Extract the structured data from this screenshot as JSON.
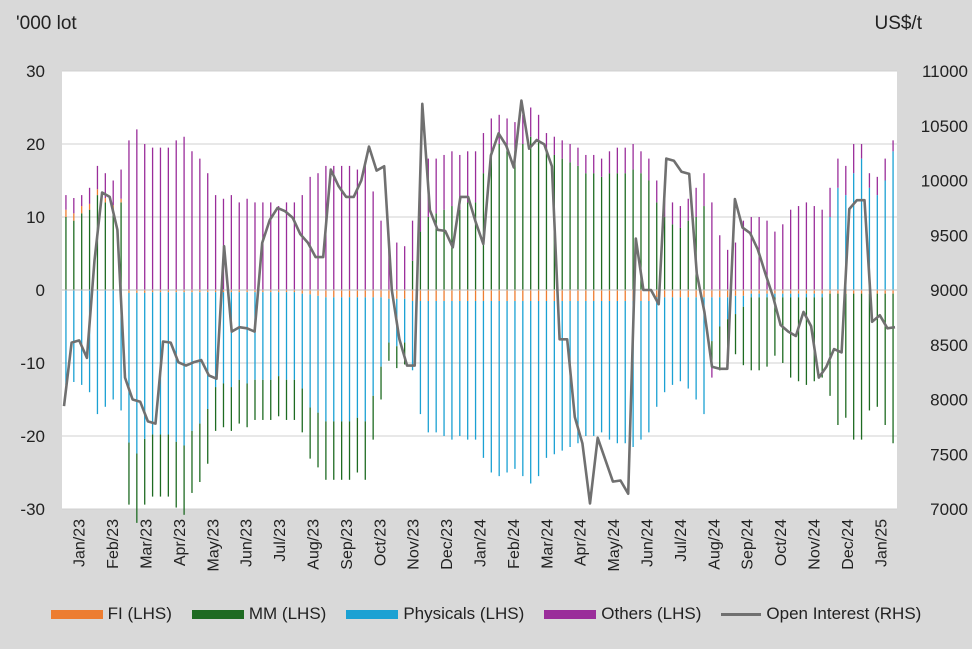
{
  "chart_data": {
    "type": "bar",
    "left_axis_unit": "'000 lot",
    "right_axis_unit": "US$/t",
    "ylim_left": [
      -30,
      30
    ],
    "yticks_left": [
      30,
      20,
      10,
      0,
      -10,
      -20,
      -30
    ],
    "ylim_right": [
      7000,
      11000
    ],
    "yticks_right": [
      11000,
      10500,
      10000,
      9500,
      9000,
      8500,
      8000,
      7500,
      7000
    ],
    "x_tick_labels": [
      "Jan/23",
      "Feb/23",
      "Mar/23",
      "Apr/23",
      "May/23",
      "Jun/23",
      "Jul/23",
      "Aug/23",
      "Sep/23",
      "Oct/23",
      "Nov/23",
      "Dec/23",
      "Jan/24",
      "Feb/24",
      "Mar/24",
      "Apr/24",
      "May/24",
      "Jun/24",
      "Jul/24",
      "Aug/24",
      "Sep/24",
      "Oct/24",
      "Nov/24",
      "Dec/24",
      "Jan/25"
    ],
    "grid": true,
    "legend_position": "bottom",
    "series": [
      {
        "name": "FI (LHS)",
        "color": "#ed7d31",
        "kind": "bar",
        "axis": "left"
      },
      {
        "name": "MM (LHS)",
        "color": "#1e6b22",
        "kind": "bar",
        "axis": "left"
      },
      {
        "name": "Physicals (LHS)",
        "color": "#1ba1d3",
        "kind": "bar",
        "axis": "left"
      },
      {
        "name": "Others (LHS)",
        "color": "#9a2d9a",
        "kind": "bar",
        "axis": "left"
      },
      {
        "name": "Open Interest (RHS)",
        "color": "#707070",
        "kind": "line",
        "axis": "right"
      }
    ],
    "bars": {
      "long_total": [
        13,
        12.6,
        13,
        14,
        17,
        16,
        15,
        16.5,
        20.5,
        22,
        20,
        19.5,
        19.5,
        19.5,
        20.5,
        21,
        19,
        18,
        16,
        13,
        12.5,
        13,
        12,
        12.5,
        12,
        12,
        12,
        11.5,
        12,
        12,
        13,
        15.5,
        16,
        17,
        17,
        17,
        17,
        16.5,
        17,
        13.5,
        9.5,
        6,
        6.5,
        6,
        9.5,
        15.5,
        18,
        18,
        18.5,
        19,
        18.5,
        19,
        19,
        21.5,
        23.5,
        24,
        23.5,
        23,
        24,
        25,
        24,
        21.5,
        21,
        20.5,
        20,
        19.5,
        18.5,
        18.5,
        18,
        19,
        19.5,
        19.5,
        20,
        19,
        18,
        15,
        13,
        12,
        11.5,
        12.5,
        14,
        16,
        12,
        7.5,
        5.5,
        6.5,
        9.5,
        10,
        10,
        9.5,
        8,
        9,
        11,
        11.5,
        12,
        11.5,
        11,
        14,
        18,
        17,
        20,
        20,
        16,
        15.5,
        18,
        20.5
      ],
      "mm": [
        10,
        9.5,
        10.5,
        11,
        13,
        12,
        11,
        12,
        -8.5,
        -9.5,
        -9,
        -8.5,
        -8.5,
        -8.5,
        -9,
        -9.5,
        -8.5,
        -8,
        -7.5,
        -6,
        -6,
        -6,
        -6,
        -6,
        -5.5,
        -5.5,
        -5.5,
        -5.5,
        -5.5,
        -5.5,
        -6,
        -7,
        -7.5,
        -8,
        -8,
        -8,
        -8,
        -7.5,
        -8,
        -6,
        -4.5,
        -2.5,
        -3,
        -3,
        4,
        8,
        10,
        10.5,
        11,
        11.5,
        11,
        12,
        12,
        16,
        19,
        20,
        19.5,
        19,
        20,
        21,
        20.5,
        19,
        18.5,
        18,
        17.5,
        17,
        16,
        16,
        15.5,
        16,
        16,
        16,
        16.5,
        16,
        15,
        12,
        10,
        9,
        8.5,
        9.5,
        10,
        11.5,
        -3,
        -6,
        -5,
        -5.5,
        -8,
        -10,
        -10,
        -9.5,
        -8,
        -9,
        -11,
        -11.5,
        -12,
        -11.5,
        -11,
        -14,
        -18,
        -17,
        -20,
        -20,
        -16,
        -15.5,
        -18,
        -20.5
      ],
      "physicals": [
        -13,
        -12.6,
        -13,
        -14,
        -17,
        -16,
        -15,
        -16.5,
        -20.5,
        -22,
        -20,
        -19.5,
        -19.5,
        -19.5,
        -20.5,
        -21,
        -19,
        -18,
        -16,
        -13,
        -12.5,
        -13,
        -12,
        -12.5,
        -12,
        -12,
        -12,
        -11.5,
        -12,
        -12,
        -13,
        -15.5,
        -16,
        -17,
        -17,
        -17,
        -17,
        -16.5,
        -17,
        -13.5,
        -9.5,
        -6,
        -6.5,
        -6,
        -9.5,
        -15.5,
        -18,
        -18,
        -18.5,
        -19,
        -18.5,
        -19,
        -19,
        -21.5,
        -23.5,
        -24,
        -23.5,
        -23,
        -24,
        -25,
        -24,
        -21.5,
        -21,
        -20.5,
        -20,
        -19.5,
        -18.5,
        -18.5,
        -18,
        -19,
        -19.5,
        -19.5,
        -20,
        -19,
        -18,
        -15,
        -13,
        -12,
        -11.5,
        -12.5,
        -14,
        -16,
        -6,
        -4,
        -3,
        -2.5,
        -1.5,
        -0.5,
        -0.5,
        -0.5,
        -0.5,
        -0.5,
        -0.5,
        -0.5,
        -0.5,
        -0.5,
        -0.5,
        10,
        14,
        13,
        16,
        18,
        14,
        13,
        15,
        19
      ],
      "fi": [
        1,
        1,
        1,
        0.8,
        0.8,
        0.6,
        0.6,
        0.5,
        -0.4,
        -0.4,
        -0.4,
        -0.3,
        -0.3,
        -0.3,
        -0.3,
        -0.3,
        -0.3,
        -0.3,
        -0.3,
        -0.3,
        -0.3,
        -0.3,
        -0.3,
        -0.3,
        -0.3,
        -0.3,
        -0.3,
        -0.3,
        -0.3,
        -0.3,
        -0.5,
        -0.6,
        -0.8,
        -1,
        -1,
        -1,
        -1,
        -1,
        -1,
        -1,
        -1,
        -1.2,
        -1.2,
        -1.2,
        -1.5,
        -1.5,
        -1.5,
        -1.5,
        -1.5,
        -1.5,
        -1.5,
        -1.5,
        -1.5,
        -1.5,
        -1.5,
        -1.5,
        -1.5,
        -1.5,
        -1.5,
        -1.5,
        -1.5,
        -1.5,
        -1.5,
        -1.5,
        -1.5,
        -1.5,
        -1.5,
        -1.5,
        -1.5,
        -1.5,
        -1.5,
        -1.5,
        -1.5,
        -1.5,
        -1.5,
        -1,
        -1,
        -1,
        -1,
        -1,
        -1,
        -1,
        -1,
        -1,
        -1,
        -0.8,
        -0.8,
        -0.5,
        -0.5,
        -0.5,
        -0.5,
        -0.5,
        -0.5,
        -0.5,
        -0.5,
        -0.5,
        -0.5,
        -0.5,
        -0.5,
        -0.5,
        -0.5,
        -0.5,
        -0.5,
        -0.5,
        -0.5,
        -0.5
      ]
    },
    "open_interest": [
      7940,
      8520,
      8540,
      8380,
      9270,
      9890,
      9850,
      9550,
      8200,
      8000,
      7980,
      7800,
      7780,
      8530,
      8520,
      8340,
      8310,
      8340,
      8360,
      8220,
      8190,
      9400,
      8620,
      8660,
      8650,
      8620,
      9430,
      9640,
      9750,
      9720,
      9660,
      9510,
      9430,
      9300,
      9300,
      10100,
      9950,
      9850,
      9850,
      10000,
      10310,
      10090,
      10130,
      9000,
      8550,
      8310,
      8310,
      10700,
      9730,
      9550,
      9540,
      9390,
      9850,
      9850,
      9620,
      9420,
      10230,
      10430,
      10320,
      10120,
      10730,
      10290,
      10370,
      10330,
      10130,
      8550,
      8550,
      7840,
      7600,
      7050,
      7650,
      7450,
      7250,
      7260,
      7140,
      9470,
      9000,
      9000,
      8870,
      10200,
      10180,
      10080,
      10060,
      9150,
      8800,
      8300,
      8280,
      8280,
      9830,
      9570,
      9520,
      9370,
      9150,
      8940,
      8680,
      8620,
      8580,
      8800,
      8670,
      8200,
      8300,
      8460,
      8430,
      9740,
      9820,
      9820,
      8710,
      8770,
      8650,
      8660
    ]
  },
  "legend": [
    "FI (LHS)",
    "MM (LHS)",
    "Physicals (LHS)",
    "Others (LHS)",
    "Open Interest (RHS)"
  ]
}
